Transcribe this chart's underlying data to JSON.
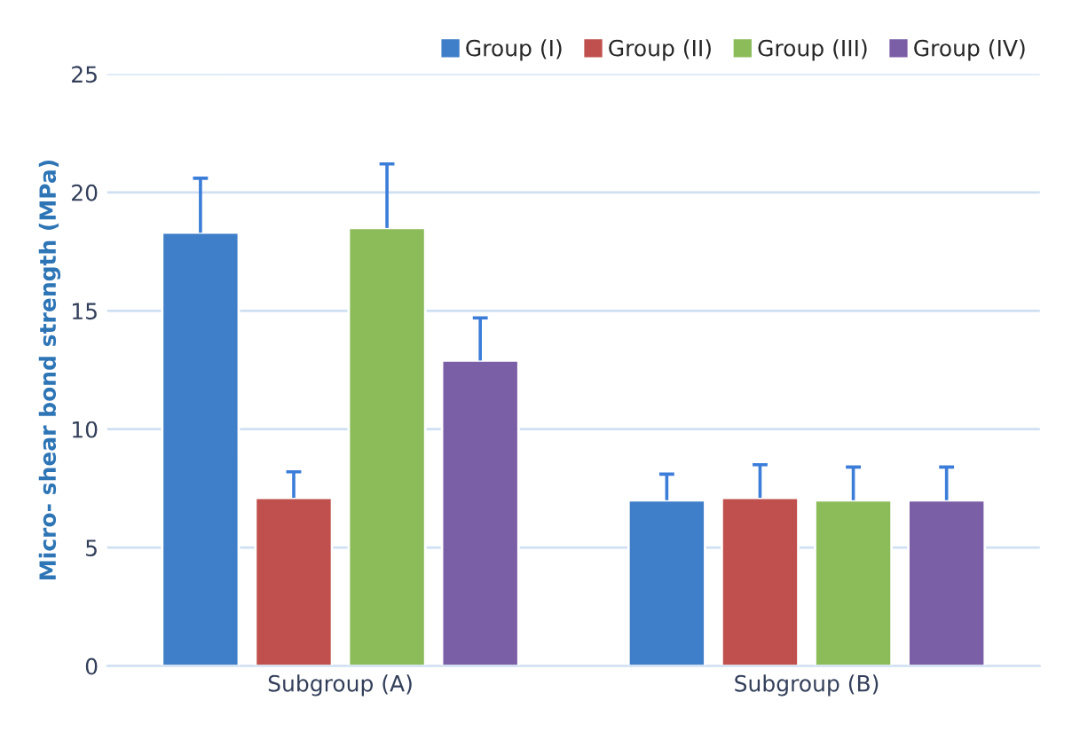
{
  "chart_data": {
    "type": "bar",
    "ylabel": "Micro- shear bond strength (MPa)",
    "categories": [
      "Subgroup (A)",
      "Subgroup (B)"
    ],
    "series": [
      {
        "name": "Group (I)",
        "color": "#3f7ec8",
        "values": [
          18.3,
          7.0
        ],
        "errors": [
          [
            18.3,
            20.6
          ],
          [
            7.0,
            8.1
          ]
        ]
      },
      {
        "name": "Group (II)",
        "color": "#c0504d",
        "values": [
          7.1,
          7.1
        ],
        "errors": [
          [
            7.1,
            8.2
          ],
          [
            7.1,
            8.5
          ]
        ]
      },
      {
        "name": "Group (III)",
        "color": "#8cbb5a",
        "values": [
          18.5,
          7.0
        ],
        "errors": [
          [
            18.5,
            21.2
          ],
          [
            7.0,
            8.4
          ]
        ]
      },
      {
        "name": "Group (IV)",
        "color": "#7a5ea6",
        "values": [
          12.9,
          7.0
        ],
        "errors": [
          [
            12.9,
            14.7
          ],
          [
            7.0,
            8.4
          ]
        ]
      }
    ],
    "ylim": [
      0,
      25
    ],
    "yticks": [
      0,
      5,
      10,
      15,
      20,
      25
    ],
    "grid": "y",
    "legend": "top right"
  }
}
